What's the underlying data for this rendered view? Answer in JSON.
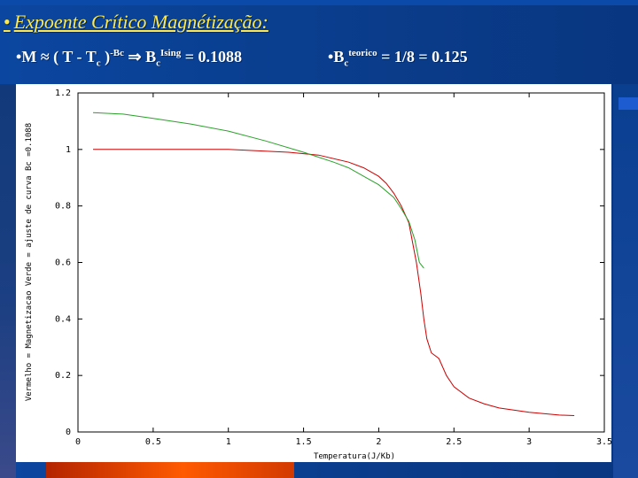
{
  "slide": {
    "title": "Expoente Crítico Magnétização:",
    "formula_left": {
      "prefix": "M ≈ ( T - T",
      "sub1": "c",
      "mid": " )",
      "sup1": "-Bc",
      "arrow": " ⇒ B",
      "sub2": "c",
      "sup2": "Ising",
      "suffix": " = 0.1088"
    },
    "formula_right": {
      "prefix": "B",
      "sub1": "c",
      "sup1": "teorico",
      "suffix": " = 1/8 = 0.125"
    },
    "colors": {
      "title": "#ffe94a",
      "text": "#ffffff",
      "background": "#0a3d8c"
    }
  },
  "chart_data": {
    "type": "line",
    "xlabel": "Temperatura(J/Kb)",
    "ylabel": "Vermelho = Magnetizacao    Verde = ajuste de curva    Bc =0.1088",
    "xlim": [
      0,
      3.5
    ],
    "ylim": [
      0,
      1.2
    ],
    "xticks": [
      "0",
      "0.5",
      "1",
      "1.5",
      "2",
      "2.5",
      "3",
      "3.5"
    ],
    "yticks": [
      "0",
      "0.2",
      "0.4",
      "0.6",
      "0.8",
      "1",
      "1.2"
    ],
    "grid": false,
    "series": [
      {
        "color": "#cc0000",
        "x": [
          0.1,
          0.5,
          1.0,
          1.2,
          1.4,
          1.6,
          1.8,
          1.9,
          2.0,
          2.05,
          2.1,
          2.15,
          2.2,
          2.25,
          2.28,
          2.3,
          2.32,
          2.35,
          2.4,
          2.45,
          2.5,
          2.6,
          2.7,
          2.8,
          3.0,
          3.2,
          3.3
        ],
        "y": [
          1.0,
          1.0,
          1.0,
          0.995,
          0.99,
          0.98,
          0.955,
          0.935,
          0.905,
          0.88,
          0.845,
          0.8,
          0.74,
          0.6,
          0.49,
          0.4,
          0.33,
          0.28,
          0.26,
          0.2,
          0.16,
          0.12,
          0.1,
          0.085,
          0.07,
          0.06,
          0.058
        ]
      },
      {
        "color": "#2aa02a",
        "x": [
          0.1,
          0.3,
          0.5,
          0.75,
          1.0,
          1.25,
          1.5,
          1.7,
          1.8,
          1.9,
          2.0,
          2.1,
          2.15,
          2.2,
          2.24,
          2.27,
          2.3
        ],
        "y": [
          1.13,
          1.125,
          1.11,
          1.09,
          1.065,
          1.03,
          0.99,
          0.955,
          0.935,
          0.905,
          0.875,
          0.83,
          0.79,
          0.745,
          0.68,
          0.6,
          0.58
        ]
      }
    ]
  }
}
